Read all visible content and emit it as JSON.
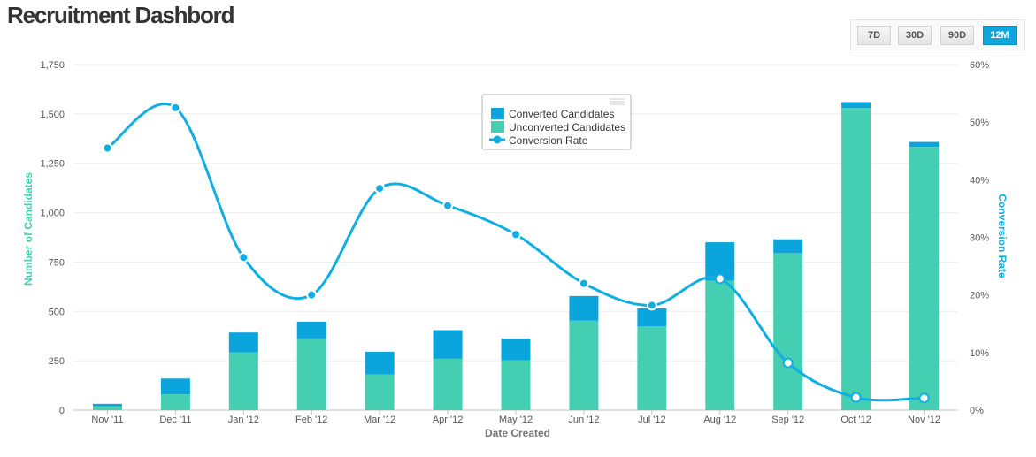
{
  "header": {
    "title": "Recruitment Dashbord"
  },
  "range_buttons": [
    {
      "label": "7D",
      "active": false
    },
    {
      "label": "30D",
      "active": false
    },
    {
      "label": "90D",
      "active": false
    },
    {
      "label": "12M",
      "active": true
    }
  ],
  "colors": {
    "converted": "#0aa5dd",
    "unconverted": "#45cfb2",
    "rate": "#11aee3",
    "left_axis_title": "#45cfb2",
    "right_axis_title": "#11aee3"
  },
  "chart_data": {
    "type": "bar",
    "categories": [
      "Nov '11",
      "Dec '11",
      "Jan '12",
      "Feb '12",
      "Mar '12",
      "Apr '12",
      "May '12",
      "Jun '12",
      "Jul '12",
      "Aug '12",
      "Sep '12",
      "Oct '12",
      "Nov '12"
    ],
    "series": [
      {
        "name": "Converted Candidates",
        "type": "bar",
        "stack": "candidates",
        "axis": "left",
        "values": [
          12,
          80,
          100,
          85,
          115,
          145,
          110,
          125,
          90,
          195,
          70,
          30,
          25
        ]
      },
      {
        "name": "Unconverted Candidates",
        "type": "bar",
        "stack": "candidates",
        "axis": "left",
        "values": [
          20,
          80,
          293,
          363,
          181,
          260,
          253,
          453,
          425,
          655,
          795,
          1530,
          1333
        ]
      },
      {
        "name": "Conversion Rate",
        "type": "line",
        "axis": "right",
        "unit": "%",
        "values": [
          45.5,
          52.5,
          26.5,
          20.0,
          38.5,
          35.5,
          30.5,
          22.0,
          18.2,
          22.8,
          8.2,
          2.2,
          2.1
        ]
      }
    ],
    "xlabel": "Date Created",
    "ylabel": "Number of Candidates",
    "y2label": "Conversion Rate",
    "ylim": [
      0,
      1750
    ],
    "yticks": [
      "0",
      "250",
      "500",
      "750",
      "1,000",
      "1,250",
      "1,500",
      "1,750"
    ],
    "y2lim": [
      0,
      60
    ],
    "y2ticks": [
      "0%",
      "10%",
      "20%",
      "30%",
      "40%",
      "50%",
      "60%"
    ],
    "grid": true,
    "legend": "top-center"
  }
}
